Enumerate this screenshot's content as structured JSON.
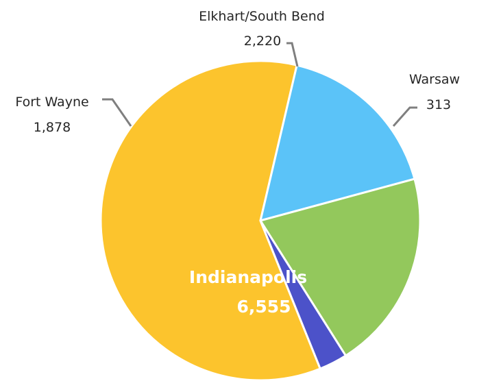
{
  "chart_data": {
    "type": "pie",
    "title": "",
    "slices": [
      {
        "label": "Indianapolis",
        "value": 6555,
        "value_label": "6,555",
        "color": "#fcc42d"
      },
      {
        "label": "Fort Wayne",
        "value": 1878,
        "value_label": "1,878",
        "color": "#5bc3f8"
      },
      {
        "label": "Elkhart/South Bend",
        "value": 2220,
        "value_label": "2,220",
        "color": "#93c85c"
      },
      {
        "label": "Warsaw",
        "value": 313,
        "value_label": "313",
        "color": "#4c52c9"
      }
    ],
    "legend": "none",
    "data_labels": "outside with leader lines; largest slice labeled inside"
  }
}
